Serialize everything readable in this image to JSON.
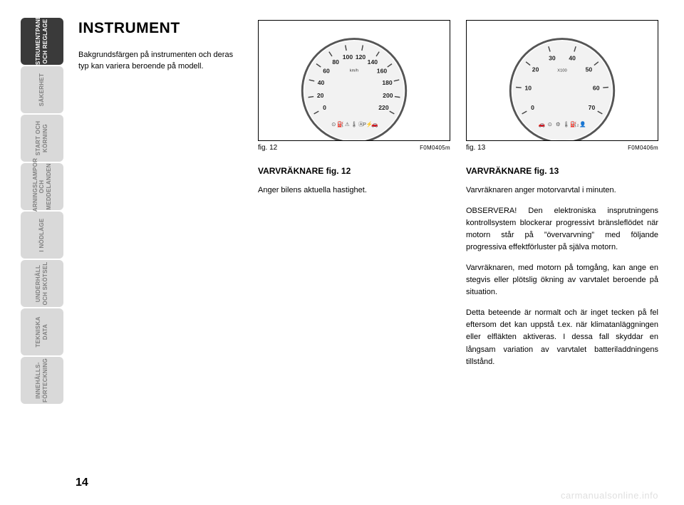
{
  "title": "INSTRUMENT",
  "intro": "Bakgrundsfärgen på instrumenten och deras typ kan variera beroende på modell.",
  "page_number": "14",
  "watermark": "carmanualsonline.info",
  "sidebar": [
    {
      "label": "INSTRUMENTPANEL\nOCH REGLAGE",
      "active": true
    },
    {
      "label": "SÄKERHET",
      "active": false
    },
    {
      "label": "START OCH\nKÖRNING",
      "active": false
    },
    {
      "label": "VARNINGSLAMPOR\nOCH MEDDELANDEN",
      "active": false
    },
    {
      "label": "I NÖDLÄGE",
      "active": false
    },
    {
      "label": "UNDERHÅLL\nOCH SKÖTSEL",
      "active": false
    },
    {
      "label": "TEKNISKA\nDATA",
      "active": false
    },
    {
      "label": "INNEHÅLLS-\nFÖRTECKNING",
      "active": false
    }
  ],
  "fig12": {
    "caption": "fig. 12",
    "code": "F0M0405m",
    "subhead": "VARVRÄKNARE fig. 12",
    "body": [
      "Anger bilens aktuella hastighet."
    ],
    "gauge": {
      "unit": "km/h",
      "ticks": [
        "0",
        "20",
        "40",
        "60",
        "80",
        "100",
        "120",
        "140",
        "160",
        "180",
        "200",
        "220"
      ],
      "start_angle_deg": 210,
      "end_angle_deg": -30,
      "icons": [
        "⊙",
        "⛽",
        "⚠",
        "🌡",
        "Ⓐ",
        "P⚡",
        "🚗"
      ],
      "dial_color": "#f2f2f2",
      "rim_color": "#555555",
      "text_color": "#222222"
    }
  },
  "fig13": {
    "caption": "fig. 13",
    "code": "F0M0406m",
    "subhead": "VARVRÄKNARE fig. 13",
    "body": [
      "Varvräknaren anger motorvarvtal i minuten.",
      "OBSERVERA! Den elektroniska insprutningens kontrollsystem blockerar progressivt bränsleflödet när motorn står på ”övervarvning” med följande progressiva effektförluster på själva motorn.",
      "Varvräknaren, med motorn på tomgång, kan ange en stegvis eller plötslig ökning av varvtalet beroende på situation.",
      "Detta beteende är normalt och är inget tecken på fel eftersom det kan uppstå t.ex. när klimatanläggningen eller elfläkten aktiveras. I dessa fall skyddar en långsam variation av varvtalet batteriladdningens tillstånd."
    ],
    "gauge": {
      "unit": "X100",
      "ticks": [
        "0",
        "10",
        "20",
        "30",
        "40",
        "50",
        "60",
        "70"
      ],
      "start_angle_deg": 210,
      "end_angle_deg": -30,
      "icons": [
        "🚗",
        "⊙",
        "⚙",
        "🌡",
        "⛽₂",
        "👤"
      ],
      "dial_color": "#f2f2f2",
      "rim_color": "#555555",
      "text_color": "#222222"
    }
  }
}
